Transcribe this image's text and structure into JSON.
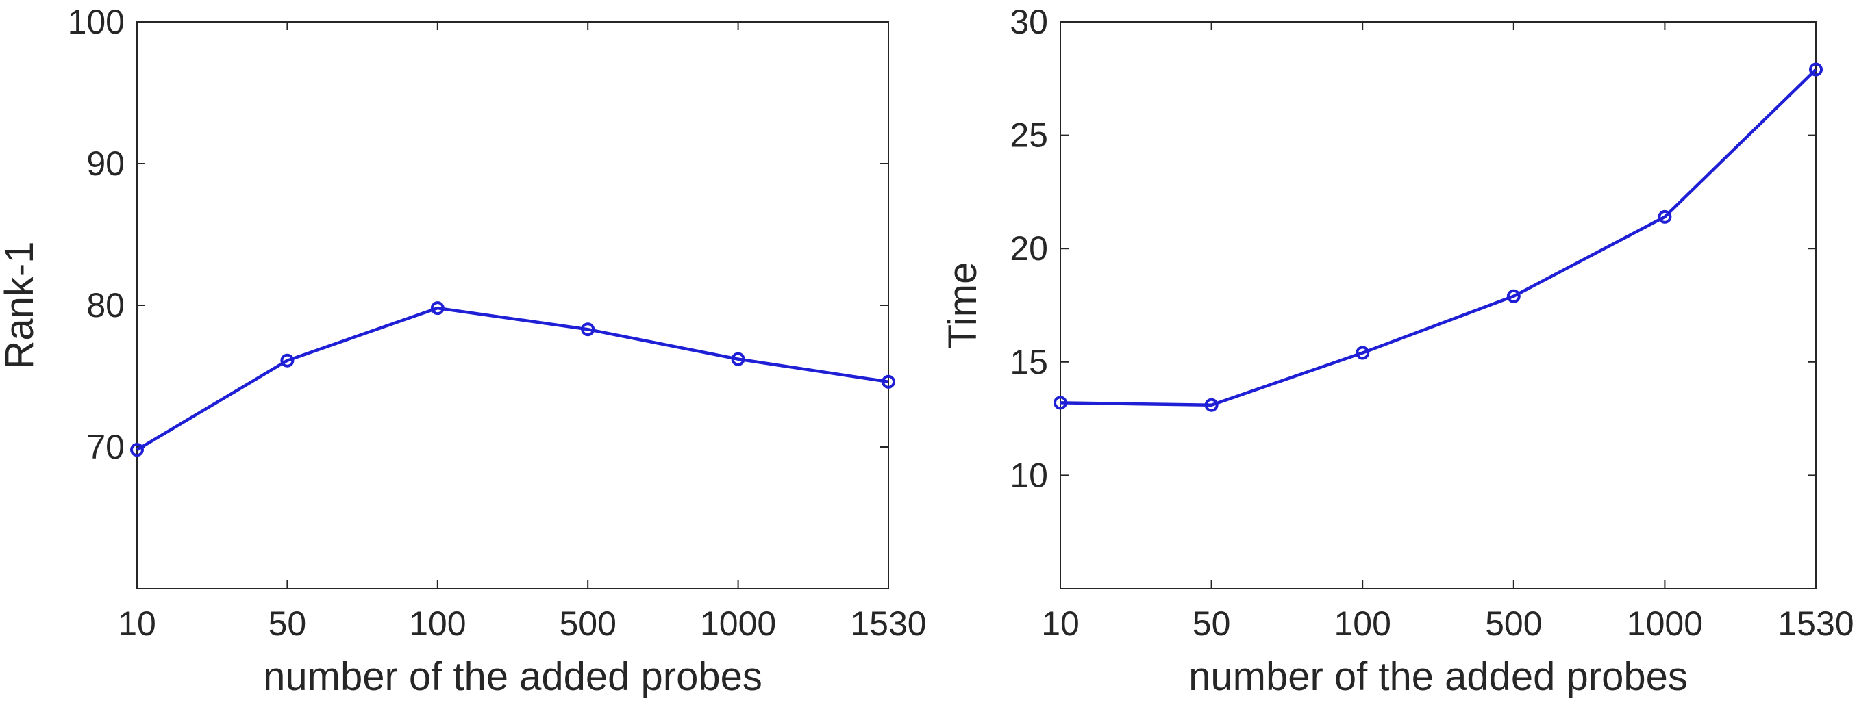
{
  "chart_data": [
    {
      "type": "line",
      "xlabel": "number of the added probes",
      "ylabel": "Rank-1",
      "categories": [
        "10",
        "50",
        "100",
        "500",
        "1000",
        "1530"
      ],
      "series": [
        {
          "values": [
            69.8,
            76.1,
            79.8,
            78.3,
            76.2,
            74.6
          ]
        }
      ],
      "ylim": [
        60,
        100
      ],
      "yticks": [
        70,
        80,
        90,
        100
      ],
      "grid": false,
      "marker": "circle",
      "line_color": "#1f1fd6"
    },
    {
      "type": "line",
      "xlabel": "number of the added probes",
      "ylabel": "Time",
      "categories": [
        "10",
        "50",
        "100",
        "500",
        "1000",
        "1530"
      ],
      "series": [
        {
          "values": [
            13.2,
            13.1,
            15.4,
            17.9,
            21.4,
            27.9
          ]
        }
      ],
      "ylim": [
        5,
        30
      ],
      "yticks": [
        10,
        15,
        20,
        25,
        30
      ],
      "grid": false,
      "marker": "circle",
      "line_color": "#1f1fd6"
    }
  ]
}
